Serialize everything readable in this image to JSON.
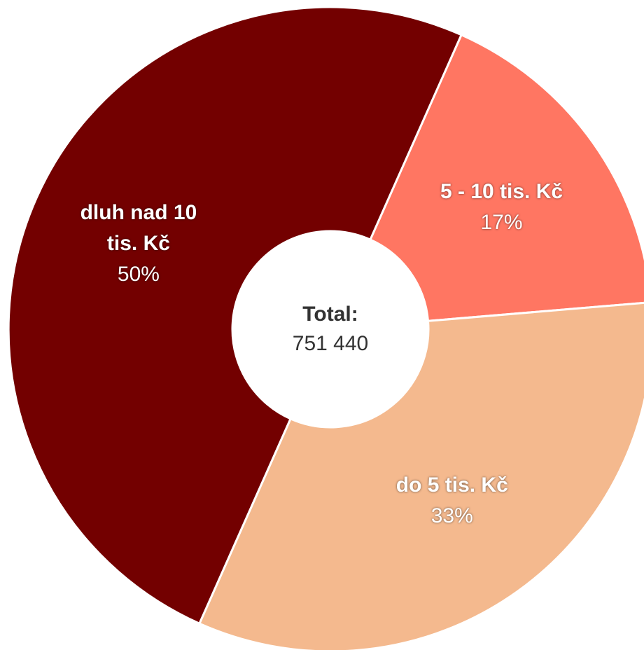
{
  "chart_data": {
    "type": "donut",
    "categories": [
      "5 - 10 tis. Kč",
      "do 5 tis. Kč",
      "dluh nad 10 tis. Kč"
    ],
    "values": [
      17,
      33,
      50
    ],
    "value_labels": [
      "17%",
      "33%",
      "50%"
    ],
    "colors": [
      "#ff7662",
      "#f4b98e",
      "#730000"
    ],
    "center_title": "Total:",
    "center_value": {
      "value": 751440,
      "label": "751 440"
    }
  }
}
